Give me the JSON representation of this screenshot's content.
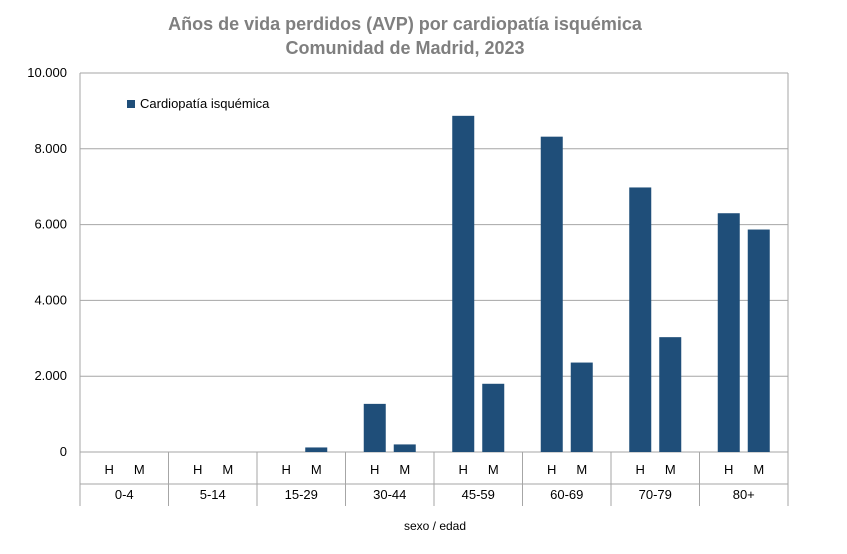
{
  "chart_data": {
    "type": "bar",
    "title": "Años de vida perdidos (AVP) por cardiopatía isquémica",
    "subtitle": "Comunidad de Madrid, 2023",
    "xlabel": "sexo / edad",
    "ylabel": "",
    "ylim": [
      0,
      10000
    ],
    "yticks": [
      "0",
      "2.000",
      "4.000",
      "6.000",
      "8.000",
      "10.000"
    ],
    "ytick_values": [
      0,
      2000,
      4000,
      6000,
      8000,
      10000
    ],
    "grid": true,
    "legend_position": "top-left",
    "sub_categories": [
      "H",
      "M"
    ],
    "groups": [
      "0-4",
      "5-14",
      "15-29",
      "30-44",
      "45-59",
      "60-69",
      "70-79",
      "80+"
    ],
    "series": [
      {
        "name": "Cardiopatía isquémica",
        "color": "#1f4e79",
        "values": [
          [
            0,
            0
          ],
          [
            0,
            0
          ],
          [
            0,
            120
          ],
          [
            1270,
            200
          ],
          [
            8870,
            1800
          ],
          [
            8320,
            2360
          ],
          [
            6980,
            3030
          ],
          [
            6300,
            5870
          ]
        ]
      }
    ]
  }
}
